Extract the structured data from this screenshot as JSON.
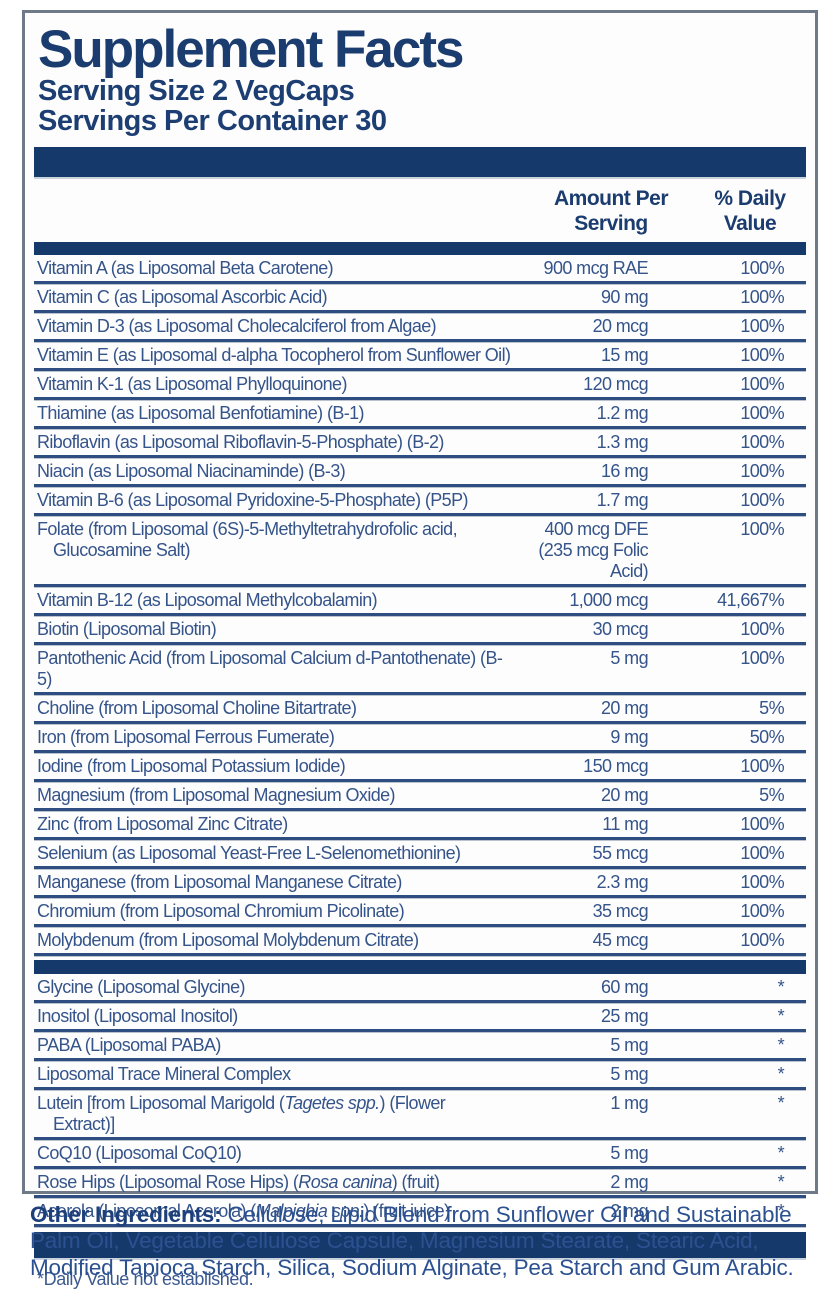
{
  "header": {
    "title": "Supplement Facts",
    "serving_size": "Serving Size 2 VegCaps",
    "servings_per_container": "Servings Per Container 30"
  },
  "columns": {
    "amount": "Amount Per\nServing",
    "daily_value": "% Daily\nValue"
  },
  "colors": {
    "navy_bar": "#16396b",
    "title_text": "#1b3c6f",
    "row_text": "#35548a",
    "separator": "#2e4d80",
    "panel_border": "#6e7a88",
    "background": "#ffffff"
  },
  "sections": [
    {
      "host": "rows-main",
      "rows": [
        {
          "name": [
            {
              "t": "Vitamin A (as Liposomal Beta Carotene)"
            }
          ],
          "amt": "900 mcg RAE",
          "dv": "100%"
        },
        {
          "name": [
            {
              "t": "Vitamin C (as Liposomal Ascorbic Acid)"
            }
          ],
          "amt": "90 mg",
          "dv": "100%"
        },
        {
          "name": [
            {
              "t": "Vitamin D-3 (as Liposomal Cholecalciferol from Algae)"
            }
          ],
          "amt": "20 mcg",
          "dv": "100%"
        },
        {
          "name": [
            {
              "t": "Vitamin E (as Liposomal d-alpha Tocopherol from Sunflower Oil)"
            }
          ],
          "amt": "15 mg",
          "dv": "100%"
        },
        {
          "name": [
            {
              "t": "Vitamin K-1 (as Liposomal Phylloquinone)"
            }
          ],
          "amt": "120 mcg",
          "dv": "100%"
        },
        {
          "name": [
            {
              "t": "Thiamine (as Liposomal Benfotiamine) (B-1)"
            }
          ],
          "amt": "1.2 mg",
          "dv": "100%"
        },
        {
          "name": [
            {
              "t": "Riboflavin (as Liposomal Riboflavin-5-Phosphate) (B-2)"
            }
          ],
          "amt": "1.3 mg",
          "dv": "100%"
        },
        {
          "name": [
            {
              "t": "Niacin (as Liposomal Niacinaminde) (B-3)"
            }
          ],
          "amt": "16 mg",
          "dv": "100%"
        },
        {
          "name": [
            {
              "t": "Vitamin B-6 (as Liposomal Pyridoxine-5-Phosphate) (P5P)"
            }
          ],
          "amt": "1.7 mg",
          "dv": "100%"
        },
        {
          "name": [
            {
              "t": "Folate (from Liposomal (6S)-5-Methyltetrahydrofolic acid,"
            }
          ],
          "name2": [
            {
              "t": "Glucosamine Salt)"
            }
          ],
          "amt": "400 mcg DFE",
          "amt2": "(235 mcg Folic Acid)",
          "dv": "100%"
        },
        {
          "name": [
            {
              "t": "Vitamin B-12 (as Liposomal Methylcobalamin)"
            }
          ],
          "amt": "1,000 mcg",
          "dv": "41,667%"
        },
        {
          "name": [
            {
              "t": "Biotin (Liposomal Biotin)"
            }
          ],
          "amt": "30 mcg",
          "dv": "100%"
        },
        {
          "name": [
            {
              "t": "Pantothenic Acid (from Liposomal Calcium d-Pantothenate) (B-5)"
            }
          ],
          "amt": "5 mg",
          "dv": "100%"
        },
        {
          "name": [
            {
              "t": "Choline (from Liposomal Choline Bitartrate)"
            }
          ],
          "amt": "20 mg",
          "dv": "5%"
        },
        {
          "name": [
            {
              "t": "Iron (from Liposomal Ferrous Fumerate)"
            }
          ],
          "amt": "9 mg",
          "dv": "50%"
        },
        {
          "name": [
            {
              "t": "Iodine (from Liposomal Potassium Iodide)"
            }
          ],
          "amt": "150 mcg",
          "dv": "100%"
        },
        {
          "name": [
            {
              "t": "Magnesium (from Liposomal Magnesium Oxide)"
            }
          ],
          "amt": "20 mg",
          "dv": "5%"
        },
        {
          "name": [
            {
              "t": "Zinc (from Liposomal Zinc Citrate)"
            }
          ],
          "amt": "11 mg",
          "dv": "100%"
        },
        {
          "name": [
            {
              "t": "Selenium (as Liposomal Yeast-Free L-Selenomethionine)"
            }
          ],
          "amt": "55 mcg",
          "dv": "100%"
        },
        {
          "name": [
            {
              "t": "Manganese (from Liposomal Manganese Citrate)"
            }
          ],
          "amt": "2.3 mg",
          "dv": "100%"
        },
        {
          "name": [
            {
              "t": "Chromium (from Liposomal Chromium Picolinate)"
            }
          ],
          "amt": "35 mcg",
          "dv": "100%"
        },
        {
          "name": [
            {
              "t": "Molybdenum (from Liposomal Molybdenum Citrate)"
            }
          ],
          "amt": "45 mcg",
          "dv": "100%"
        }
      ]
    },
    {
      "host": "rows-other",
      "rows": [
        {
          "name": [
            {
              "t": "Glycine (Liposomal Glycine)"
            }
          ],
          "amt": "60 mg",
          "dv": "*"
        },
        {
          "name": [
            {
              "t": "Inositol (Liposomal Inositol)"
            }
          ],
          "amt": "25 mg",
          "dv": "*"
        },
        {
          "name": [
            {
              "t": "PABA (Liposomal PABA)"
            }
          ],
          "amt": "5 mg",
          "dv": "*"
        },
        {
          "name": [
            {
              "t": "Liposomal Trace Mineral Complex"
            }
          ],
          "amt": "5 mg",
          "dv": "*"
        },
        {
          "name": [
            {
              "t": "Lutein [from Liposomal Marigold ("
            },
            {
              "t": "Tagetes spp.",
              "i": 1
            },
            {
              "t": ") (Flower"
            }
          ],
          "name2": [
            {
              "t": "Extract)]"
            }
          ],
          "amt": "1 mg",
          "dv": "*"
        },
        {
          "name": [
            {
              "t": "CoQ10 (Liposomal CoQ10)"
            }
          ],
          "amt": "5 mg",
          "dv": "*"
        },
        {
          "name": [
            {
              "t": "Rose Hips (Liposomal Rose Hips) ("
            },
            {
              "t": "Rosa canina",
              "i": 1
            },
            {
              "t": ") (fruit)"
            }
          ],
          "amt": "2 mg",
          "dv": "*"
        },
        {
          "name": [
            {
              "t": "Acerola (Liposomal Acerola) ("
            },
            {
              "t": "Malpighia spp.",
              "i": 1
            },
            {
              "t": ") (fruit juice)"
            }
          ],
          "amt": "2 mg",
          "dv": "*"
        }
      ]
    }
  ],
  "footnote": "*Daily Value not established.",
  "other_ingredients": {
    "label": "Other Ingredients:",
    "text": " Cellulose, Lipid Blend from Sunflower Oil and Sustainable Palm Oil, Vegetable Cellulose Capsule, Magnesium Stearate, Stearic Acid, Modified Tapioca Starch, Silica, Sodium Alginate, Pea Starch and Gum Arabic."
  }
}
